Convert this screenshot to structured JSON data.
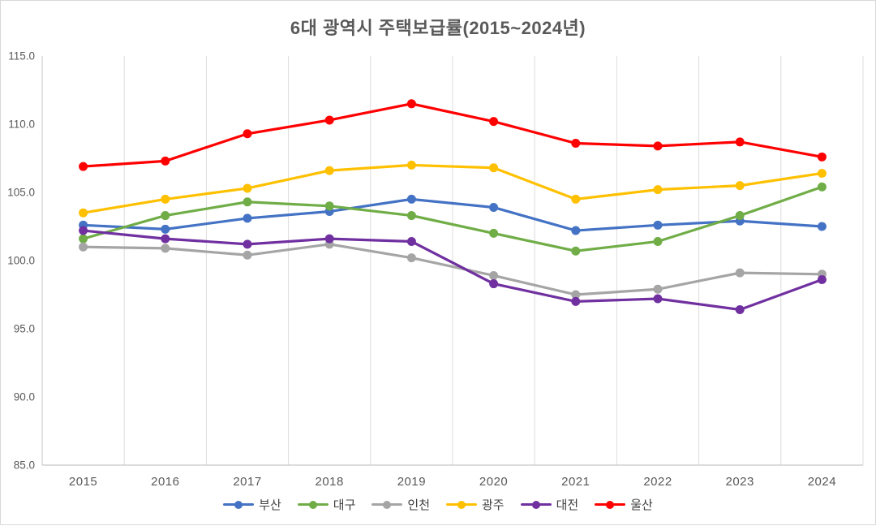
{
  "window": {
    "background": "#ffffff",
    "border_color": "#d9d9d9"
  },
  "colors": {
    "title_text": "#595959",
    "axis_tick_text": "#595959",
    "legend_text": "#404040",
    "gridline": "#dcdcdc",
    "axis_line": "#c6c6c6"
  },
  "chart_data": {
    "type": "line",
    "title": "6대 광역시 주택보급률(2015~2024년)",
    "xlabel": "",
    "ylabel": "",
    "categories": [
      "2015",
      "2016",
      "2017",
      "2018",
      "2019",
      "2020",
      "2021",
      "2022",
      "2023",
      "2024"
    ],
    "series": [
      {
        "name": "부산",
        "key": "busan",
        "color": "#4472C4",
        "values": [
          102.6,
          102.3,
          103.1,
          103.6,
          104.5,
          103.9,
          102.2,
          102.6,
          102.9,
          102.5
        ]
      },
      {
        "name": "대구",
        "key": "daegu",
        "color": "#70AD47",
        "values": [
          101.6,
          103.3,
          104.3,
          104.0,
          103.3,
          102.0,
          100.7,
          101.4,
          103.3,
          105.4
        ]
      },
      {
        "name": "인천",
        "key": "incheon",
        "color": "#A5A5A5",
        "values": [
          101.0,
          100.9,
          100.4,
          101.2,
          100.2,
          98.9,
          97.5,
          97.9,
          99.1,
          99.0
        ]
      },
      {
        "name": "광주",
        "key": "gwangju",
        "color": "#FFC000",
        "values": [
          103.5,
          104.5,
          105.3,
          106.6,
          107.0,
          106.8,
          104.5,
          105.2,
          105.5,
          106.4
        ]
      },
      {
        "name": "대전",
        "key": "daejeon",
        "color": "#7030A0",
        "values": [
          102.2,
          101.6,
          101.2,
          101.6,
          101.4,
          98.3,
          97.0,
          97.2,
          96.4,
          98.6
        ]
      },
      {
        "name": "울산",
        "key": "ulsan",
        "color": "#FF0000",
        "values": [
          106.9,
          107.3,
          109.3,
          110.3,
          111.5,
          110.2,
          108.6,
          108.4,
          108.7,
          107.6
        ]
      }
    ],
    "ylim": [
      85.0,
      115.0
    ],
    "y_tick_step": 5,
    "y_tick_labels": [
      "85.0",
      "90.0",
      "95.0",
      "100.0",
      "105.0",
      "110.0",
      "115.0"
    ],
    "grid": "vertical-only",
    "legend_position": "bottom",
    "marker": "circle"
  }
}
